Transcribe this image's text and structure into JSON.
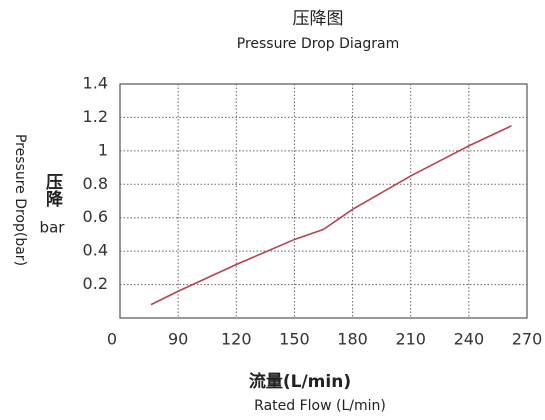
{
  "chart_data": {
    "type": "line",
    "title": "压降图",
    "subtitle": "Pressure Drop Diagram",
    "x_label": "流量(L/min)",
    "x_label_en": "Rated Flow (L/min)",
    "y_label": "Pressure Drop(bar)",
    "y_label_cn": "压降",
    "y_label_unit": "bar",
    "x": [
      76,
      90,
      120,
      150,
      165,
      180,
      210,
      240,
      262
    ],
    "series": [
      {
        "name": "Pressure Drop",
        "color": "#b8434f",
        "values": [
          0.08,
          0.16,
          0.32,
          0.47,
          0.53,
          0.65,
          0.85,
          1.03,
          1.15
        ]
      }
    ],
    "xlim": [
      60,
      270
    ],
    "xticks": [
      {
        "value": 60,
        "label": "0"
      },
      90,
      120,
      150,
      180,
      210,
      240,
      270
    ],
    "ylim": [
      0,
      1.4
    ],
    "yticks": [
      0.2,
      0.4,
      0.6,
      0.8,
      1.0,
      1.2,
      1.4
    ],
    "grid": true
  }
}
